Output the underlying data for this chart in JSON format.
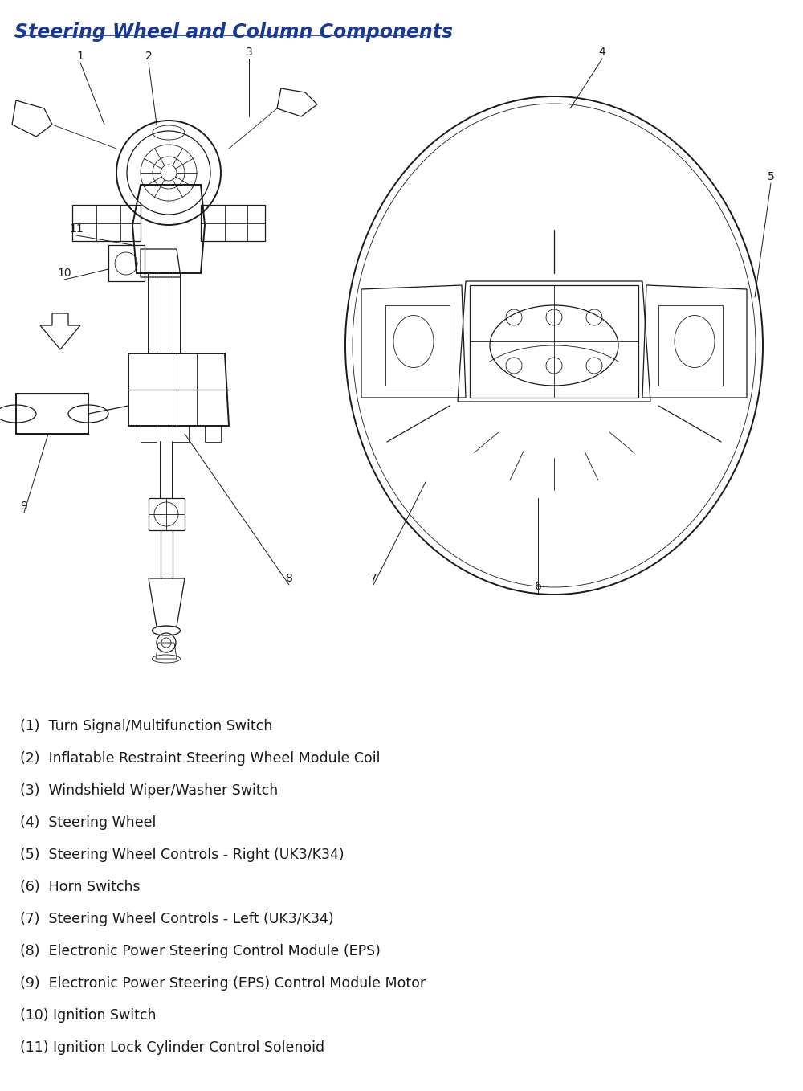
{
  "title": "Steering Wheel and Column Components",
  "title_color": "#1a3a8f",
  "title_fontsize": 17,
  "background_color": "#ffffff",
  "text_color": "#1a1a1a",
  "diagram_color": "#1a1a1a",
  "legend_items": [
    "(1)  Turn Signal/Multifunction Switch",
    "(2)  Inflatable Restraint Steering Wheel Module Coil",
    "(3)  Windshield Wiper/Washer Switch",
    "(4)  Steering Wheel",
    "(5)  Steering Wheel Controls - Right (UK3/K34)",
    "(6)  Horn Switchs",
    "(7)  Steering Wheel Controls - Left (UK3/K34)",
    "(8)  Electronic Power Steering Control Module (EPS)",
    "(9)  Electronic Power Steering (EPS) Control Module Motor",
    "(10) Ignition Switch",
    "(11) Ignition Lock Cylinder Control Solenoid"
  ],
  "legend_fontsize": 12.5,
  "fig_width": 10.0,
  "fig_height": 13.58
}
